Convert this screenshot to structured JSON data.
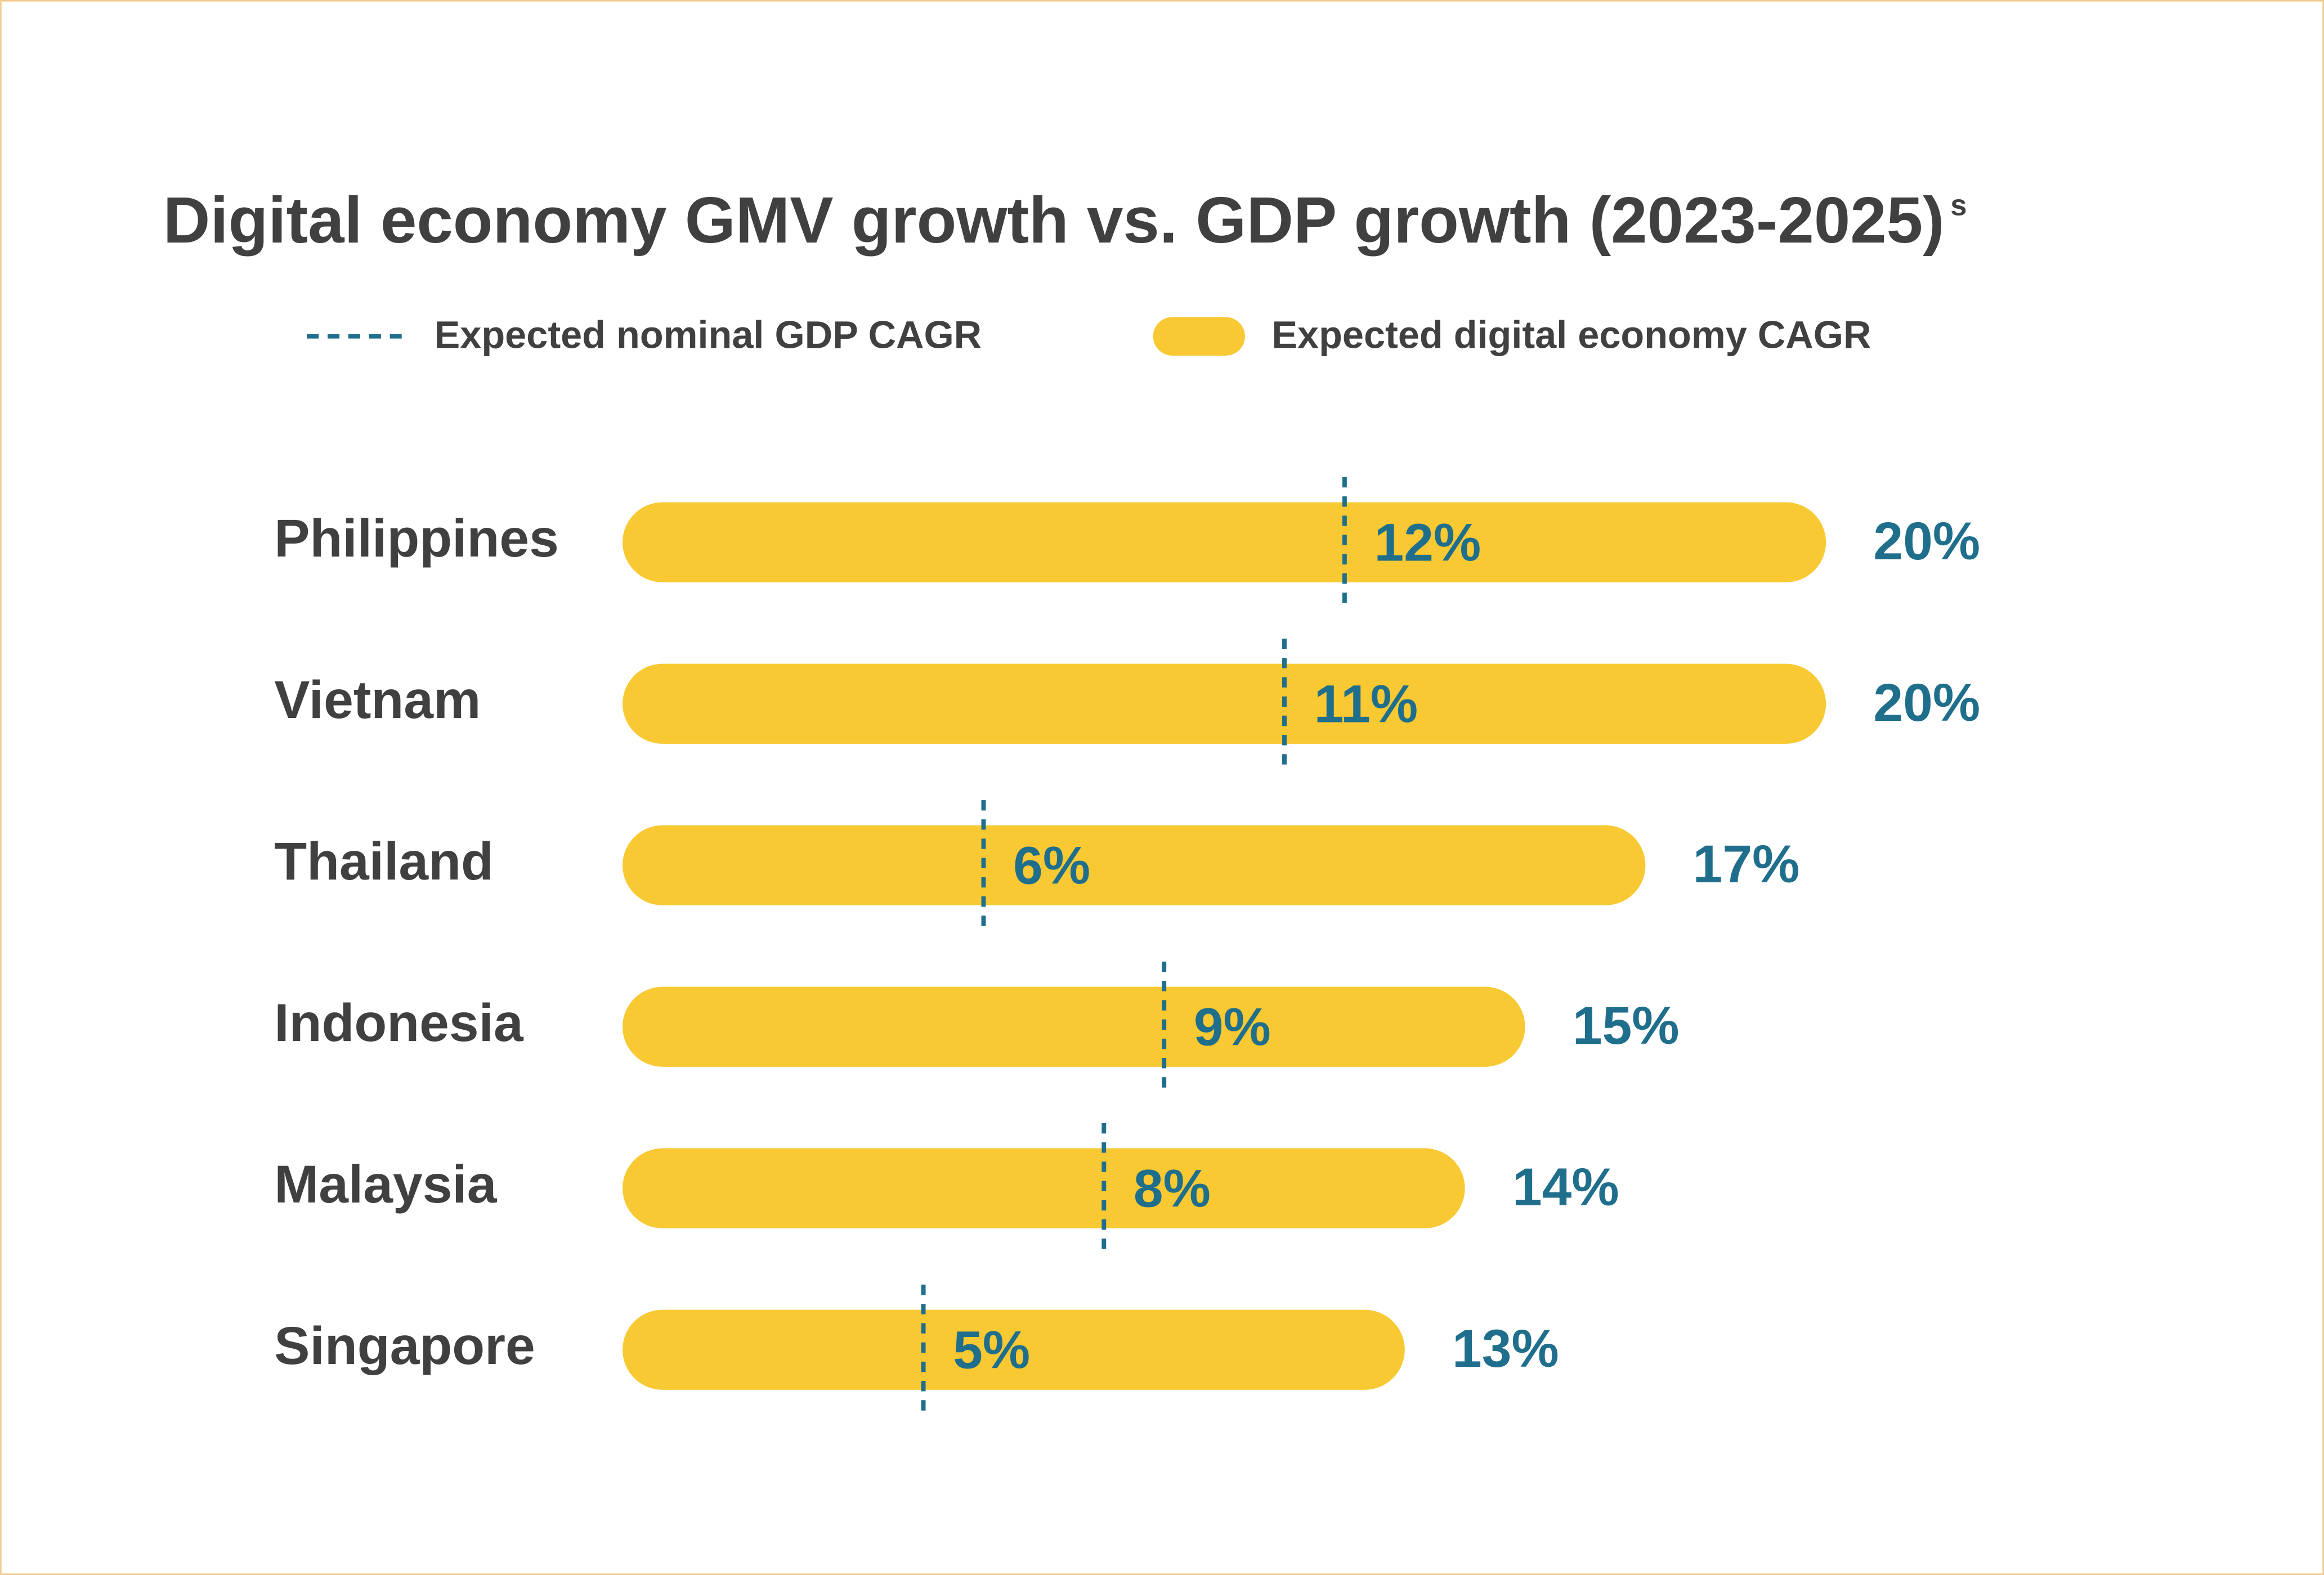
{
  "chart_data": {
    "type": "bar",
    "orientation": "horizontal",
    "title": "Digital economy GMV growth vs. GDP growth (2023-2025)",
    "title_note": "s",
    "categories": [
      "Philippines",
      "Vietnam",
      "Thailand",
      "Indonesia",
      "Malaysia",
      "Singapore"
    ],
    "series": [
      {
        "name": "Expected nominal GDP CAGR",
        "color": "#1f6e8c",
        "style": "dashed",
        "values": [
          12,
          11,
          6,
          9,
          8,
          5
        ],
        "value_labels": [
          "12%",
          "11%",
          "6%",
          "9%",
          "8%",
          "5%"
        ]
      },
      {
        "name": "Expected digital economy CAGR",
        "color": "#f9c933",
        "style": "bar",
        "values": [
          20,
          20,
          17,
          15,
          14,
          13
        ],
        "value_labels": [
          "20%",
          "20%",
          "17%",
          "15%",
          "14%",
          "13%"
        ]
      }
    ],
    "label_color": "#1f6e8c",
    "text_color": "#404040"
  }
}
